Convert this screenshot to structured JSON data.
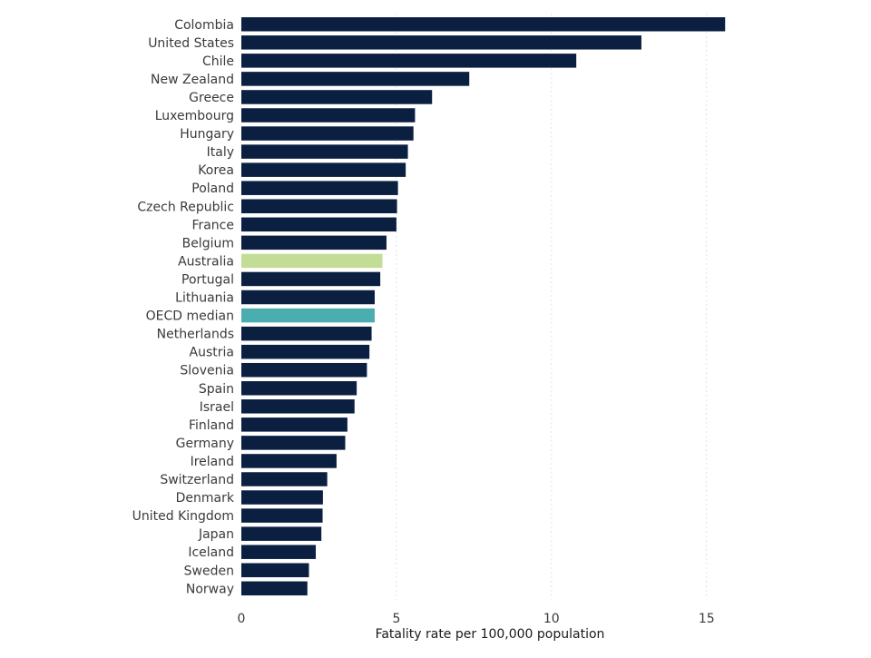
{
  "chart_data": {
    "type": "bar",
    "orientation": "horizontal",
    "title": "",
    "xlabel": "Fatality rate per 100,000 population",
    "ylabel": "",
    "xlim": [
      0,
      16.5
    ],
    "xticks": [
      0,
      5,
      10,
      15
    ],
    "grid": true,
    "legend": "none",
    "categories": [
      "Colombia",
      "United States",
      "Chile",
      "New Zealand",
      "Greece",
      "Luxembourg",
      "Hungary",
      "Italy",
      "Korea",
      "Poland",
      "Czech Republic",
      "France",
      "Belgium",
      "Australia",
      "Portugal",
      "Lithuania",
      "OECD median",
      "Netherlands",
      "Austria",
      "Slovenia",
      "Spain",
      "Israel",
      "Finland",
      "Germany",
      "Ireland",
      "Switzerland",
      "Denmark",
      "United Kingdom",
      "Japan",
      "Iceland",
      "Sweden",
      "Norway"
    ],
    "values": [
      15.6,
      12.9,
      10.8,
      7.35,
      6.15,
      5.6,
      5.55,
      5.37,
      5.3,
      5.05,
      5.02,
      5.0,
      4.68,
      4.55,
      4.48,
      4.3,
      4.3,
      4.2,
      4.13,
      4.05,
      3.72,
      3.65,
      3.42,
      3.35,
      3.07,
      2.77,
      2.63,
      2.62,
      2.58,
      2.4,
      2.18,
      2.13
    ],
    "colors": {
      "default": "#0b1f40",
      "highlight": "#c3dd96",
      "median": "#4aaeb0"
    },
    "highlight_categories": [
      "Australia"
    ],
    "median_categories": [
      "OECD median"
    ]
  }
}
